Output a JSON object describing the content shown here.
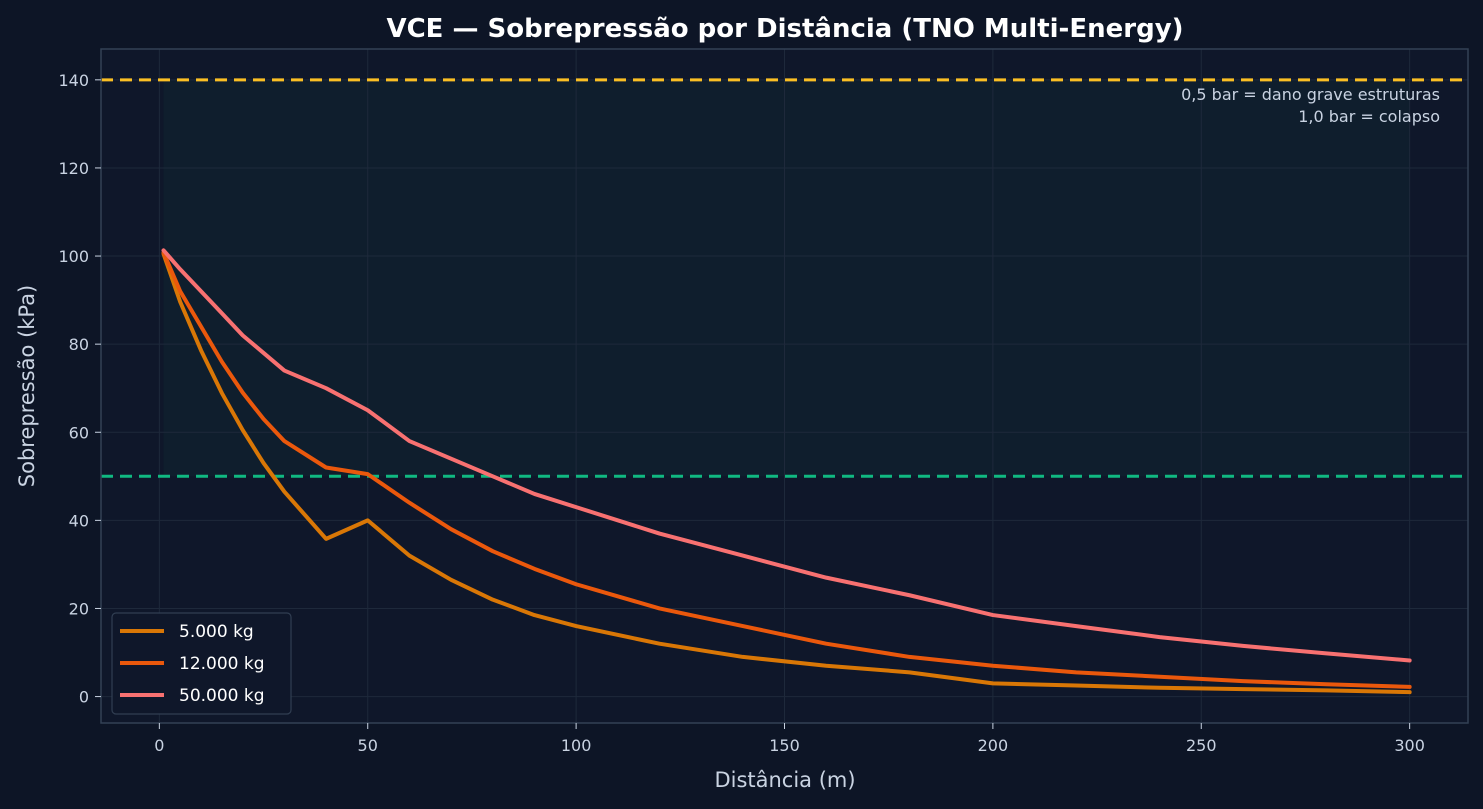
{
  "chart_data": {
    "type": "line",
    "title": "VCE — Sobrepressão por Distância (TNO Multi-Energy)",
    "xlabel": "Distância (m)",
    "ylabel": "Sobrepressão (kPa)",
    "xlim": [
      -14,
      314
    ],
    "ylim": [
      -6,
      147
    ],
    "x_ticks": [
      0,
      50,
      100,
      150,
      200,
      250,
      300
    ],
    "y_ticks": [
      0,
      20,
      40,
      60,
      80,
      100,
      120,
      140
    ],
    "grid": true,
    "legend_position": "lower-left",
    "x": [
      1,
      5,
      10,
      15,
      20,
      25,
      30,
      40,
      50,
      60,
      70,
      80,
      90,
      100,
      120,
      140,
      160,
      180,
      200,
      220,
      240,
      260,
      280,
      300
    ],
    "series": [
      {
        "name": "5.000 kg",
        "color": "#d97706",
        "values": [
          100.5,
          89.6,
          78.6,
          68.9,
          60.5,
          53.0,
          46.5,
          35.8,
          40.0,
          32.0,
          26.5,
          22.0,
          18.5,
          16.0,
          12.0,
          9.0,
          7.0,
          5.5,
          3.0,
          2.5,
          2.0,
          1.7,
          1.4,
          1.0
        ]
      },
      {
        "name": "12.000 kg",
        "color": "#ea580c",
        "values": [
          100.8,
          92.0,
          84.0,
          76.0,
          69.0,
          63.0,
          58.0,
          52.0,
          50.5,
          44.0,
          38.0,
          33.0,
          29.0,
          25.5,
          20.0,
          16.0,
          12.0,
          9.0,
          7.0,
          5.5,
          4.5,
          3.5,
          2.8,
          2.2
        ]
      },
      {
        "name": "50.000 kg",
        "color": "#f87171",
        "values": [
          101.3,
          97.0,
          92.0,
          87.0,
          82.0,
          78.0,
          74.0,
          70.0,
          65.0,
          58.0,
          54.0,
          50.0,
          46.0,
          43.0,
          37.0,
          32.0,
          27.0,
          23.0,
          18.5,
          16.0,
          13.5,
          11.5,
          9.8,
          8.2
        ]
      }
    ],
    "reference_lines": [
      {
        "y": 140,
        "color": "#fbbf24"
      },
      {
        "y": 50,
        "color": "#10b981"
      }
    ],
    "annotations": [
      "0,5 bar = dano grave estruturas",
      "1,0 bar = colapso"
    ],
    "colors": {
      "background": "#0d1526",
      "plot_background": "#0f172a",
      "shaded_zone": "#0f1f2e",
      "grid": "#1e293b",
      "axes": "#334155",
      "text": "#c9d3e2",
      "title": "#ffffff"
    }
  }
}
